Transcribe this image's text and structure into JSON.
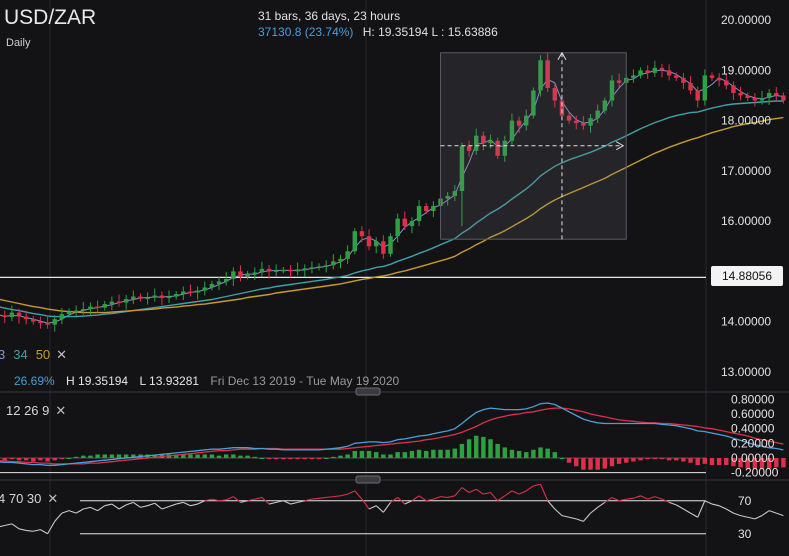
{
  "header": {
    "symbol": "USD/ZAR",
    "timeframe": "Daily"
  },
  "measure": {
    "line1": "31 bars, 36 days, 23 hours",
    "change": "37130.8 (23.74%)",
    "high_low": "H: 19.35194 L : 15.63886"
  },
  "ma_legend": {
    "periods": [
      "3",
      "34",
      "50"
    ],
    "colors": [
      "#8a8fd6",
      "#3fa0a8",
      "#c79a2e"
    ],
    "close": "✕"
  },
  "stats": {
    "pct": "26.69%",
    "high": "H 19.35194",
    "low": "L 13.93281",
    "range": "Fri Dec 13 2019 - Tue May 19 2020"
  },
  "current_price": "14.88056",
  "macd_legend": {
    "params": "12 26 9",
    "close": "✕"
  },
  "rsi_legend": {
    "params": "4 70 30",
    "close": "✕"
  },
  "colors": {
    "up": "#2ea043",
    "down": "#d9324a",
    "signal": "#d9324a",
    "macd": "#4a9fd8",
    "rsi": "#c9c9c9",
    "rsi_hot": "#d9324a"
  },
  "chart_data": [
    {
      "type": "candlestick",
      "title": "USD/ZAR",
      "yticks": [
        "20.00000",
        "19.00000",
        "18.00000",
        "17.00000",
        "16.00000",
        "14.00000",
        "13.00000"
      ],
      "ylim": [
        12.6,
        20.4
      ],
      "close": [
        14.12,
        14.09,
        14.18,
        14.1,
        14.05,
        14.0,
        13.98,
        13.94,
        14.05,
        14.15,
        14.2,
        14.22,
        14.25,
        14.3,
        14.28,
        14.35,
        14.4,
        14.38,
        14.45,
        14.5,
        14.46,
        14.48,
        14.52,
        14.47,
        14.5,
        14.55,
        14.6,
        14.58,
        14.62,
        14.68,
        14.75,
        14.8,
        14.85,
        15.0,
        14.9,
        14.95,
        14.98,
        15.05,
        15.0,
        15.02,
        15.03,
        15.0,
        15.04,
        15.06,
        15.08,
        15.1,
        15.12,
        15.2,
        15.25,
        15.4,
        15.8,
        15.7,
        15.5,
        15.6,
        15.35,
        15.7,
        16.05,
        15.9,
        16.0,
        16.3,
        16.2,
        16.3,
        16.45,
        16.5,
        16.6,
        17.5,
        17.4,
        17.7,
        17.55,
        17.6,
        17.3,
        17.6,
        18.0,
        17.9,
        18.1,
        18.6,
        19.2,
        18.65,
        18.4,
        18.1,
        18.0,
        17.95,
        17.9,
        18.05,
        18.2,
        18.4,
        18.8,
        18.75,
        18.85,
        18.9,
        19.0,
        18.95,
        19.05,
        19.0,
        18.9,
        18.85,
        18.75,
        18.6,
        18.4,
        18.9,
        18.85,
        18.8,
        18.7,
        18.55,
        18.5,
        18.45,
        18.4,
        18.45,
        18.55,
        18.5,
        18.4
      ],
      "series": [
        {
          "name": "3",
          "values": [
            14.14,
            14.11,
            14.12,
            14.12,
            14.08,
            14.05,
            14.01,
            13.97,
            13.99,
            14.05,
            14.13,
            14.19,
            14.22,
            14.26,
            14.28,
            14.31,
            14.34,
            14.38,
            14.41,
            14.44,
            14.47,
            14.48,
            14.49,
            14.49,
            14.5,
            14.51,
            14.55,
            14.58,
            14.6,
            14.63,
            14.68,
            14.74,
            14.8,
            14.88,
            14.92,
            14.95,
            14.94,
            14.99,
            15.01,
            15.02,
            15.02,
            15.02,
            15.02,
            15.03,
            15.06,
            15.08,
            15.1,
            15.14,
            15.19,
            15.28,
            15.48,
            15.63,
            15.67,
            15.6,
            15.48,
            15.55,
            15.7,
            15.88,
            15.98,
            16.07,
            16.17,
            16.27,
            16.32,
            16.42,
            16.52,
            16.87,
            17.17,
            17.53,
            17.55,
            17.62,
            17.48,
            17.5,
            17.63,
            17.83,
            18.0,
            18.2,
            18.63,
            18.82,
            18.75,
            18.38,
            18.17,
            18.02,
            17.95,
            17.97,
            18.05,
            18.22,
            18.47,
            18.65,
            18.8,
            18.83,
            18.92,
            18.95,
            19.0,
            19.0,
            18.98,
            18.92,
            18.83,
            18.73,
            18.58,
            18.63,
            18.72,
            18.85,
            18.78,
            18.68,
            18.58,
            18.5,
            18.45,
            18.43,
            18.47,
            18.5,
            18.48
          ]
        },
        {
          "name": "34",
          "values": [
            14.3,
            14.27,
            14.24,
            14.22,
            14.19,
            14.16,
            14.14,
            14.11,
            14.1,
            14.1,
            14.1,
            14.1,
            14.11,
            14.12,
            14.13,
            14.15,
            14.16,
            14.18,
            14.2,
            14.22,
            14.24,
            14.26,
            14.28,
            14.3,
            14.32,
            14.34,
            14.36,
            14.38,
            14.4,
            14.42,
            14.44,
            14.47,
            14.5,
            14.53,
            14.56,
            14.59,
            14.62,
            14.65,
            14.67,
            14.7,
            14.72,
            14.74,
            14.76,
            14.78,
            14.8,
            14.82,
            14.84,
            14.87,
            14.89,
            14.92,
            14.97,
            15.01,
            15.04,
            15.08,
            15.1,
            15.14,
            15.2,
            15.25,
            15.3,
            15.36,
            15.41,
            15.47,
            15.53,
            15.59,
            15.65,
            15.76,
            15.85,
            15.96,
            16.06,
            16.16,
            16.24,
            16.33,
            16.44,
            16.54,
            16.64,
            16.76,
            16.9,
            17.0,
            17.09,
            17.16,
            17.22,
            17.27,
            17.32,
            17.37,
            17.43,
            17.49,
            17.57,
            17.63,
            17.7,
            17.77,
            17.84,
            17.9,
            17.96,
            18.01,
            18.06,
            18.1,
            18.13,
            18.16,
            18.17,
            18.21,
            18.25,
            18.28,
            18.31,
            18.33,
            18.34,
            18.35,
            18.36,
            18.37,
            18.38,
            18.39,
            18.39
          ]
        },
        {
          "name": "50",
          "values": [
            14.45,
            14.42,
            14.39,
            14.36,
            14.33,
            14.3,
            14.28,
            14.25,
            14.23,
            14.21,
            14.2,
            14.19,
            14.18,
            14.18,
            14.18,
            14.18,
            14.19,
            14.2,
            14.21,
            14.22,
            14.23,
            14.24,
            14.25,
            14.27,
            14.28,
            14.29,
            14.31,
            14.32,
            14.34,
            14.35,
            14.37,
            14.39,
            14.41,
            14.43,
            14.45,
            14.48,
            14.5,
            14.52,
            14.54,
            14.57,
            14.59,
            14.61,
            14.63,
            14.65,
            14.67,
            14.69,
            14.71,
            14.73,
            14.75,
            14.78,
            14.81,
            14.84,
            14.86,
            14.89,
            14.91,
            14.94,
            14.98,
            15.01,
            15.05,
            15.09,
            15.13,
            15.17,
            15.21,
            15.25,
            15.3,
            15.38,
            15.45,
            15.53,
            15.6,
            15.68,
            15.74,
            15.81,
            15.89,
            15.97,
            16.05,
            16.14,
            16.25,
            16.34,
            16.42,
            16.49,
            16.55,
            16.61,
            16.67,
            16.73,
            16.79,
            16.85,
            16.93,
            17.0,
            17.07,
            17.14,
            17.21,
            17.28,
            17.35,
            17.41,
            17.47,
            17.52,
            17.57,
            17.62,
            17.66,
            17.71,
            17.76,
            17.8,
            17.84,
            17.88,
            17.91,
            17.94,
            17.96,
            17.99,
            18.02,
            18.04,
            18.06
          ]
        }
      ],
      "horizontal_line": 14.88056
    },
    {
      "type": "macd",
      "params": "12 26 9",
      "yticks": [
        "0.80000",
        "0.60000",
        "0.40000",
        "0.20000",
        "0.00000",
        "-0.20000"
      ],
      "ylim": [
        -0.3,
        0.9
      ],
      "macd": [
        -0.05,
        -0.06,
        -0.06,
        -0.07,
        -0.08,
        -0.09,
        -0.09,
        -0.1,
        -0.1,
        -0.09,
        -0.08,
        -0.07,
        -0.06,
        -0.05,
        -0.04,
        -0.03,
        -0.02,
        -0.01,
        0.0,
        0.01,
        0.02,
        0.03,
        0.04,
        0.05,
        0.06,
        0.07,
        0.08,
        0.09,
        0.1,
        0.11,
        0.12,
        0.12,
        0.13,
        0.14,
        0.14,
        0.14,
        0.13,
        0.13,
        0.12,
        0.12,
        0.11,
        0.11,
        0.11,
        0.11,
        0.11,
        0.11,
        0.12,
        0.13,
        0.14,
        0.16,
        0.2,
        0.21,
        0.22,
        0.22,
        0.21,
        0.22,
        0.25,
        0.26,
        0.28,
        0.3,
        0.31,
        0.33,
        0.35,
        0.37,
        0.4,
        0.47,
        0.55,
        0.62,
        0.66,
        0.68,
        0.67,
        0.66,
        0.66,
        0.66,
        0.67,
        0.7,
        0.74,
        0.75,
        0.73,
        0.68,
        0.63,
        0.58,
        0.53,
        0.5,
        0.48,
        0.47,
        0.47,
        0.47,
        0.47,
        0.47,
        0.47,
        0.47,
        0.47,
        0.46,
        0.45,
        0.44,
        0.42,
        0.4,
        0.37,
        0.36,
        0.34,
        0.32,
        0.3,
        0.27,
        0.24,
        0.21,
        0.18,
        0.16,
        0.14,
        0.13,
        0.11
      ],
      "signal": [
        -0.04,
        -0.04,
        -0.05,
        -0.05,
        -0.06,
        -0.06,
        -0.07,
        -0.07,
        -0.08,
        -0.08,
        -0.08,
        -0.08,
        -0.08,
        -0.07,
        -0.07,
        -0.06,
        -0.05,
        -0.04,
        -0.03,
        -0.02,
        -0.01,
        0.0,
        0.01,
        0.02,
        0.03,
        0.04,
        0.05,
        0.06,
        0.07,
        0.08,
        0.09,
        0.1,
        0.1,
        0.11,
        0.12,
        0.12,
        0.12,
        0.13,
        0.13,
        0.13,
        0.12,
        0.12,
        0.12,
        0.12,
        0.12,
        0.12,
        0.12,
        0.12,
        0.12,
        0.13,
        0.14,
        0.15,
        0.16,
        0.17,
        0.18,
        0.19,
        0.2,
        0.21,
        0.22,
        0.23,
        0.25,
        0.26,
        0.28,
        0.3,
        0.32,
        0.35,
        0.39,
        0.43,
        0.48,
        0.52,
        0.55,
        0.57,
        0.59,
        0.6,
        0.62,
        0.63,
        0.65,
        0.67,
        0.68,
        0.68,
        0.67,
        0.65,
        0.63,
        0.6,
        0.58,
        0.56,
        0.54,
        0.52,
        0.51,
        0.5,
        0.49,
        0.48,
        0.48,
        0.47,
        0.47,
        0.46,
        0.45,
        0.44,
        0.43,
        0.41,
        0.4,
        0.38,
        0.36,
        0.34,
        0.32,
        0.3,
        0.27,
        0.25,
        0.23,
        0.21,
        0.19
      ]
    },
    {
      "type": "line",
      "params": "4 70 30",
      "yticks": [
        "70",
        "30"
      ],
      "ylim": [
        0,
        100
      ],
      "values": [
        38,
        40,
        42,
        36,
        34,
        33,
        35,
        30,
        45,
        55,
        58,
        55,
        60,
        62,
        58,
        64,
        66,
        60,
        65,
        68,
        62,
        64,
        67,
        60,
        63,
        66,
        68,
        64,
        66,
        70,
        72,
        70,
        71,
        75,
        68,
        70,
        72,
        74,
        66,
        68,
        70,
        66,
        68,
        70,
        72,
        73,
        74,
        75,
        76,
        78,
        82,
        72,
        60,
        64,
        56,
        68,
        74,
        66,
        70,
        76,
        70,
        72,
        75,
        74,
        76,
        86,
        80,
        84,
        78,
        80,
        70,
        76,
        82,
        78,
        82,
        88,
        90,
        70,
        60,
        52,
        50,
        48,
        45,
        55,
        62,
        68,
        74,
        70,
        72,
        73,
        76,
        72,
        75,
        72,
        68,
        65,
        60,
        55,
        50,
        70,
        66,
        64,
        60,
        55,
        52,
        50,
        48,
        52,
        58,
        55,
        52
      ]
    }
  ]
}
